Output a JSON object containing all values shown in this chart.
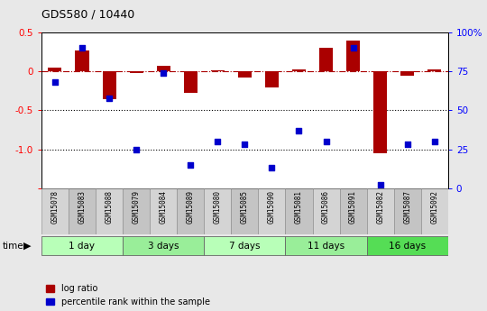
{
  "title": "GDS580 / 10440",
  "samples": [
    "GSM15078",
    "GSM15083",
    "GSM15088",
    "GSM15079",
    "GSM15084",
    "GSM15089",
    "GSM15080",
    "GSM15085",
    "GSM15090",
    "GSM15081",
    "GSM15086",
    "GSM15091",
    "GSM15082",
    "GSM15087",
    "GSM15092"
  ],
  "log_ratio": [
    0.05,
    0.27,
    -0.35,
    -0.02,
    0.07,
    -0.27,
    0.02,
    -0.08,
    -0.2,
    0.03,
    0.3,
    0.4,
    -1.05,
    -0.05,
    0.03
  ],
  "percentile": [
    68,
    90,
    58,
    25,
    74,
    15,
    30,
    28,
    13,
    37,
    30,
    90,
    2,
    28,
    30
  ],
  "groups": [
    {
      "label": "1 day",
      "indices": [
        0,
        1,
        2
      ],
      "color": "#b8ffb8"
    },
    {
      "label": "3 days",
      "indices": [
        3,
        4,
        5
      ],
      "color": "#99ee99"
    },
    {
      "label": "7 days",
      "indices": [
        6,
        7,
        8
      ],
      "color": "#b8ffb8"
    },
    {
      "label": "11 days",
      "indices": [
        9,
        10,
        11
      ],
      "color": "#99ee99"
    },
    {
      "label": "16 days",
      "indices": [
        12,
        13,
        14
      ],
      "color": "#55dd55"
    }
  ],
  "bar_color": "#aa0000",
  "dot_color": "#0000cc",
  "ylim_left": [
    -1.5,
    0.5
  ],
  "ylim_right": [
    0,
    100
  ],
  "yticks_left": [
    -1.5,
    -1.0,
    -0.5,
    0.0,
    0.5
  ],
  "yticks_right": [
    0,
    25,
    50,
    75,
    100
  ],
  "background_color": "#e8e8e8",
  "plot_bg": "#ffffff",
  "hline_y": 0.0,
  "dotted_lines": [
    -0.5,
    -1.0
  ],
  "right_tick_labels": [
    "0",
    "25",
    "50",
    "75",
    "100%"
  ],
  "left_tick_labels": [
    "",
    "-1.0",
    "-0.5",
    "0",
    "0.5"
  ],
  "legend_labels": [
    "log ratio",
    "percentile rank within the sample"
  ]
}
